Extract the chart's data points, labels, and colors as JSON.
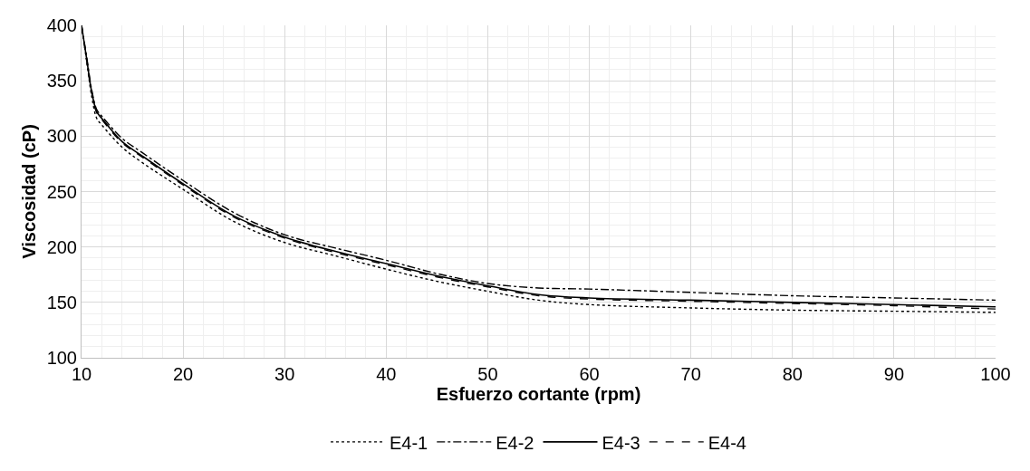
{
  "chart_data": {
    "type": "line",
    "xlabel": "Esfuerzo cortante (rpm)",
    "ylabel": "Viscosidad (cP)",
    "x": [
      10,
      10.5,
      11,
      11.5,
      12,
      14,
      16,
      20,
      25,
      30,
      35,
      40,
      45,
      50,
      55,
      60,
      70,
      80,
      90,
      100
    ],
    "series": [
      {
        "name": "E4-1",
        "color": "#000000",
        "line_style": "dotted",
        "values": [
          400,
          368,
          336,
          316,
          310,
          290,
          276,
          252,
          223,
          204,
          192,
          180,
          169,
          160,
          152,
          148,
          145,
          143,
          142,
          141
        ]
      },
      {
        "name": "E4-2",
        "color": "#000000",
        "line_style": "dashdot",
        "values": [
          400,
          372,
          342,
          324,
          318,
          298,
          285,
          260,
          231,
          211,
          199,
          188,
          176,
          167,
          163,
          162,
          159,
          156,
          154,
          152
        ]
      },
      {
        "name": "E4-3",
        "color": "#000000",
        "line_style": "solid",
        "values": [
          400,
          370,
          340,
          322,
          316,
          295,
          282,
          257,
          228,
          209,
          196,
          185,
          174,
          165,
          157,
          154,
          152,
          150,
          148,
          146
        ]
      },
      {
        "name": "E4-4",
        "color": "#000000",
        "line_style": "dashed",
        "values": [
          400,
          369,
          339,
          321,
          315,
          294,
          281,
          256,
          227,
          208,
          195,
          184,
          173,
          164,
          156,
          153,
          151,
          149,
          147,
          144
        ]
      }
    ],
    "xlim": [
      10,
      100
    ],
    "xticks": [
      10,
      20,
      30,
      40,
      50,
      60,
      70,
      80,
      90,
      100
    ],
    "ylim": [
      100,
      400
    ],
    "yticks": [
      100,
      150,
      200,
      250,
      300,
      350,
      400
    ],
    "grid": true,
    "legend": "bottom",
    "marker": "none"
  }
}
